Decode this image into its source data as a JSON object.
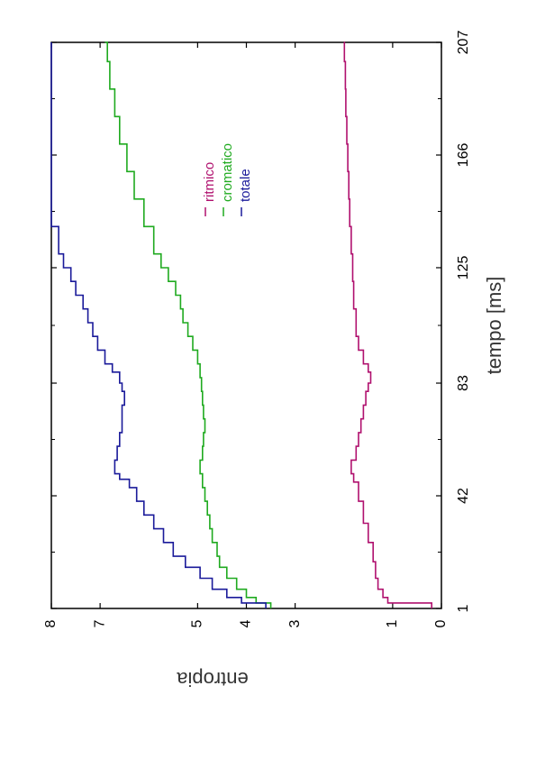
{
  "chart_data": {
    "type": "line",
    "xlabel": "tempo [ms]",
    "ylabel": "entropia",
    "xlim": [
      1,
      207
    ],
    "ylim": [
      0,
      8
    ],
    "x_ticks": [
      1,
      42,
      83,
      125,
      166,
      207
    ],
    "y_ticks": [
      0,
      1,
      3,
      4,
      5,
      7,
      8
    ],
    "legend_position": "top-right",
    "grid": false,
    "series": [
      {
        "name": "ritmico",
        "color": "#b0106e",
        "points": [
          [
            1,
            0.2
          ],
          [
            3,
            1.1
          ],
          [
            5,
            1.2
          ],
          [
            8,
            1.3
          ],
          [
            12,
            1.35
          ],
          [
            18,
            1.4
          ],
          [
            25,
            1.5
          ],
          [
            32,
            1.6
          ],
          [
            40,
            1.7
          ],
          [
            47,
            1.8
          ],
          [
            50,
            1.85
          ],
          [
            55,
            1.75
          ],
          [
            60,
            1.7
          ],
          [
            65,
            1.65
          ],
          [
            70,
            1.6
          ],
          [
            75,
            1.55
          ],
          [
            80,
            1.5
          ],
          [
            83,
            1.45
          ],
          [
            87,
            1.5
          ],
          [
            90,
            1.6
          ],
          [
            95,
            1.7
          ],
          [
            100,
            1.75
          ],
          [
            110,
            1.8
          ],
          [
            120,
            1.82
          ],
          [
            130,
            1.85
          ],
          [
            140,
            1.88
          ],
          [
            150,
            1.9
          ],
          [
            160,
            1.92
          ],
          [
            170,
            1.94
          ],
          [
            180,
            1.96
          ],
          [
            190,
            1.97
          ],
          [
            200,
            1.99
          ],
          [
            207,
            2.0
          ]
        ]
      },
      {
        "name": "cromatico",
        "color": "#1faa1f",
        "points": [
          [
            1,
            3.5
          ],
          [
            3,
            3.8
          ],
          [
            5,
            4.0
          ],
          [
            8,
            4.2
          ],
          [
            12,
            4.4
          ],
          [
            16,
            4.55
          ],
          [
            20,
            4.6
          ],
          [
            25,
            4.7
          ],
          [
            30,
            4.75
          ],
          [
            35,
            4.8
          ],
          [
            40,
            4.85
          ],
          [
            45,
            4.9
          ],
          [
            50,
            4.95
          ],
          [
            55,
            4.9
          ],
          [
            60,
            4.88
          ],
          [
            65,
            4.85
          ],
          [
            70,
            4.88
          ],
          [
            75,
            4.9
          ],
          [
            80,
            4.92
          ],
          [
            85,
            4.95
          ],
          [
            90,
            5.0
          ],
          [
            95,
            5.1
          ],
          [
            100,
            5.2
          ],
          [
            105,
            5.3
          ],
          [
            110,
            5.35
          ],
          [
            115,
            5.45
          ],
          [
            120,
            5.6
          ],
          [
            125,
            5.75
          ],
          [
            130,
            5.9
          ],
          [
            140,
            6.1
          ],
          [
            150,
            6.3
          ],
          [
            160,
            6.45
          ],
          [
            170,
            6.6
          ],
          [
            180,
            6.7
          ],
          [
            190,
            6.8
          ],
          [
            200,
            6.85
          ],
          [
            207,
            6.9
          ]
        ]
      },
      {
        "name": "totale",
        "color": "#1a1a9a",
        "points": [
          [
            1,
            3.6
          ],
          [
            3,
            4.1
          ],
          [
            5,
            4.4
          ],
          [
            8,
            4.7
          ],
          [
            12,
            4.95
          ],
          [
            16,
            5.25
          ],
          [
            20,
            5.5
          ],
          [
            25,
            5.7
          ],
          [
            30,
            5.9
          ],
          [
            35,
            6.1
          ],
          [
            40,
            6.25
          ],
          [
            45,
            6.4
          ],
          [
            48,
            6.6
          ],
          [
            50,
            6.7
          ],
          [
            55,
            6.65
          ],
          [
            60,
            6.6
          ],
          [
            65,
            6.55
          ],
          [
            70,
            6.55
          ],
          [
            75,
            6.5
          ],
          [
            80,
            6.55
          ],
          [
            83,
            6.6
          ],
          [
            87,
            6.75
          ],
          [
            90,
            6.9
          ],
          [
            95,
            7.05
          ],
          [
            100,
            7.15
          ],
          [
            105,
            7.25
          ],
          [
            110,
            7.35
          ],
          [
            115,
            7.5
          ],
          [
            120,
            7.6
          ],
          [
            125,
            7.75
          ],
          [
            130,
            7.85
          ],
          [
            140,
            8.0
          ],
          [
            150,
            8.15
          ],
          [
            160,
            8.25
          ],
          [
            170,
            8.35
          ],
          [
            180,
            8.45
          ],
          [
            190,
            8.5
          ],
          [
            200,
            8.55
          ],
          [
            207,
            8.6
          ]
        ]
      }
    ]
  }
}
